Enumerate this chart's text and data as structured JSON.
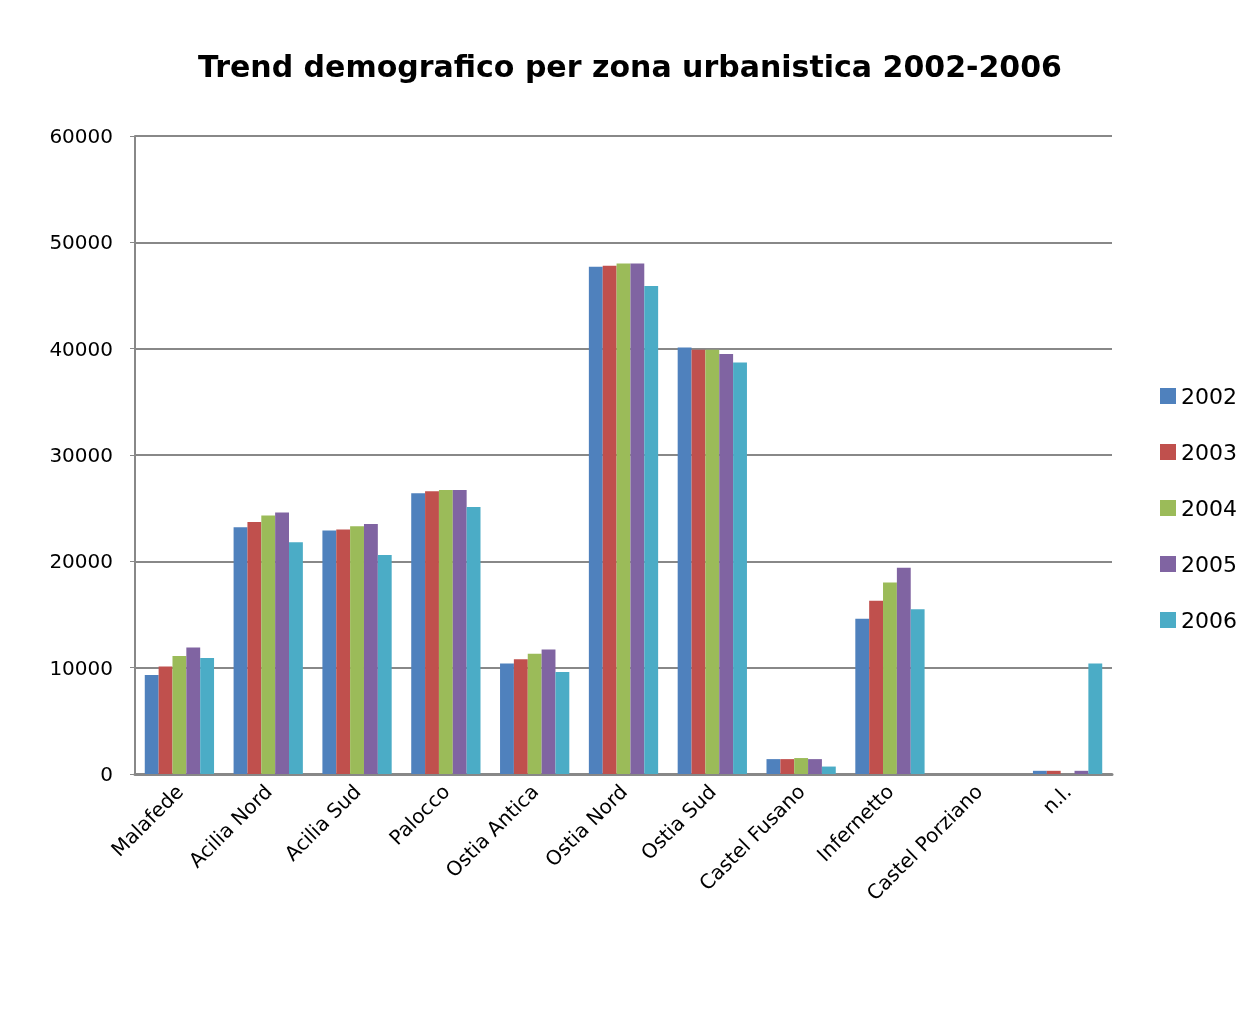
{
  "chart_data": {
    "type": "bar",
    "title": "Trend demografico per zona urbanistica 2002-2006",
    "categories": [
      "Malafede",
      "Acilia Nord",
      "Acilia Sud",
      "Palocco",
      "Ostia Antica",
      "Ostia Nord",
      "Ostia Sud",
      "Castel Fusano",
      "Infernetto",
      "Castel Porziano",
      "n.l."
    ],
    "series": [
      {
        "name": "2002",
        "color": "#4f81bd",
        "values": [
          9300,
          23200,
          22900,
          26400,
          10400,
          47700,
          40100,
          1400,
          14600,
          0,
          300
        ]
      },
      {
        "name": "2003",
        "color": "#c0504d",
        "values": [
          10100,
          23700,
          23000,
          26600,
          10800,
          47800,
          39900,
          1400,
          16300,
          0,
          300
        ]
      },
      {
        "name": "2004",
        "color": "#9bbb59",
        "values": [
          11100,
          24300,
          23300,
          26700,
          11300,
          48000,
          39900,
          1500,
          18000,
          0,
          0
        ]
      },
      {
        "name": "2005",
        "color": "#8064a2",
        "values": [
          11900,
          24600,
          23500,
          26700,
          11700,
          48000,
          39500,
          1400,
          19400,
          0,
          300
        ]
      },
      {
        "name": "2006",
        "color": "#4bacc6",
        "values": [
          10900,
          21800,
          20600,
          25100,
          9600,
          45900,
          38700,
          700,
          15500,
          0,
          10400
        ]
      }
    ],
    "ylim": [
      0,
      60000
    ],
    "yticks": [
      0,
      10000,
      20000,
      30000,
      40000,
      50000,
      60000
    ],
    "grid": "y",
    "legend": "right"
  }
}
